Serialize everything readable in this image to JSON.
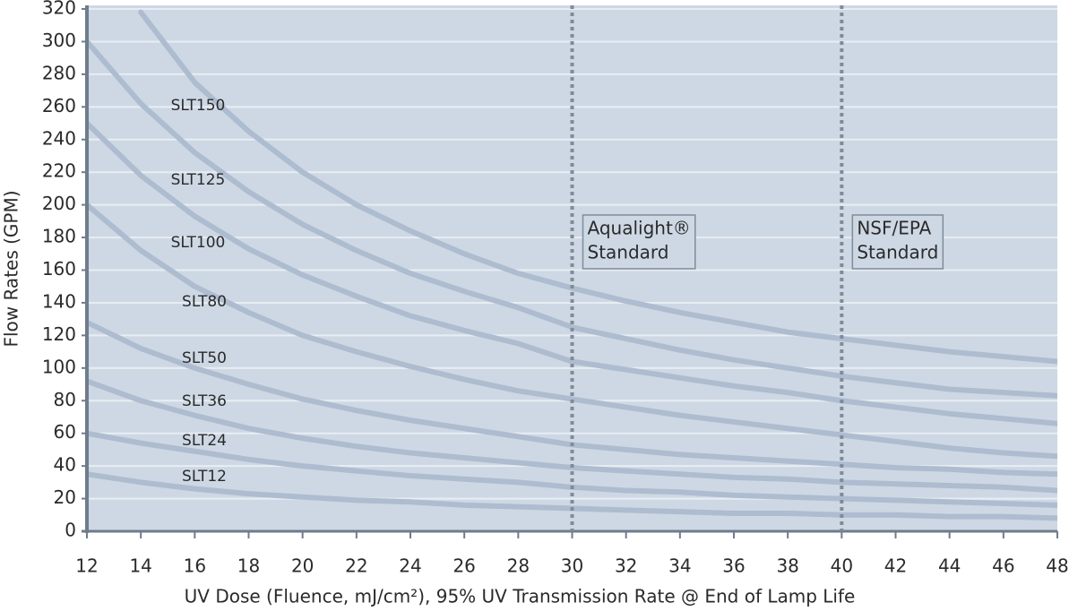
{
  "chart_data": {
    "type": "line",
    "xlabel": "UV Dose (Fluence, mJ/cm²), 95% UV Transmission Rate @ End of Lamp Life",
    "ylabel": "Flow Rates (GPM)",
    "x": [
      12,
      14,
      16,
      18,
      20,
      22,
      24,
      26,
      28,
      30,
      32,
      34,
      36,
      38,
      40,
      42,
      44,
      46,
      48
    ],
    "series": [
      {
        "name": "SLT150",
        "color": "#aebcd0",
        "values": [
          null,
          318,
          275,
          245,
          220,
          200,
          184,
          170,
          158,
          149,
          141,
          134,
          128,
          122,
          118,
          114,
          110,
          107,
          104
        ]
      },
      {
        "name": "SLT125",
        "color": "#aebcd0",
        "values": [
          300,
          262,
          232,
          208,
          188,
          172,
          158,
          147,
          137,
          125,
          118,
          111,
          105,
          100,
          95,
          91,
          87,
          85,
          83
        ]
      },
      {
        "name": "SLT100",
        "color": "#aebcd0",
        "values": [
          250,
          218,
          193,
          173,
          157,
          144,
          132,
          123,
          115,
          104,
          99,
          94,
          89,
          85,
          80,
          76,
          72,
          69,
          66
        ]
      },
      {
        "name": "SLT80",
        "color": "#aebcd0",
        "values": [
          200,
          172,
          150,
          134,
          120,
          110,
          101,
          93,
          86,
          81,
          76,
          71,
          67,
          63,
          59,
          55,
          51,
          48,
          46
        ]
      },
      {
        "name": "SLT50",
        "color": "#aebcd0",
        "values": [
          128,
          112,
          100,
          90,
          81,
          74,
          68,
          63,
          58,
          53,
          50,
          47,
          45,
          43,
          41,
          39,
          38,
          36,
          35
        ]
      },
      {
        "name": "SLT36",
        "color": "#aebcd0",
        "values": [
          92,
          80,
          71,
          63,
          57,
          52,
          48,
          45,
          42,
          39,
          37,
          35,
          33,
          32,
          30,
          29,
          28,
          27,
          25
        ]
      },
      {
        "name": "SLT24",
        "color": "#aebcd0",
        "values": [
          60,
          54,
          49,
          44,
          40,
          37,
          34,
          32,
          30,
          27,
          25,
          24,
          22,
          21,
          20,
          19,
          18,
          17,
          16
        ]
      },
      {
        "name": "SLT12",
        "color": "#aebcd0",
        "values": [
          35,
          30,
          26,
          23,
          21,
          19,
          18,
          16,
          15,
          14,
          13,
          12,
          11,
          11,
          10,
          10,
          9,
          9,
          8
        ]
      }
    ],
    "reference_lines": [
      {
        "x": 30,
        "label": [
          "Aqualight®",
          "Standard"
        ]
      },
      {
        "x": 40,
        "label": [
          "NSF/EPA",
          "Standard"
        ]
      }
    ],
    "xlim": [
      12,
      48
    ],
    "xticks": [
      12,
      14,
      16,
      18,
      20,
      22,
      24,
      26,
      28,
      30,
      32,
      34,
      36,
      38,
      40,
      42,
      44,
      46,
      48
    ],
    "ylim": [
      0,
      320
    ],
    "yticks": [
      0,
      20,
      40,
      60,
      80,
      100,
      120,
      140,
      160,
      180,
      200,
      220,
      240,
      260,
      280,
      300,
      320
    ],
    "grid": true
  }
}
